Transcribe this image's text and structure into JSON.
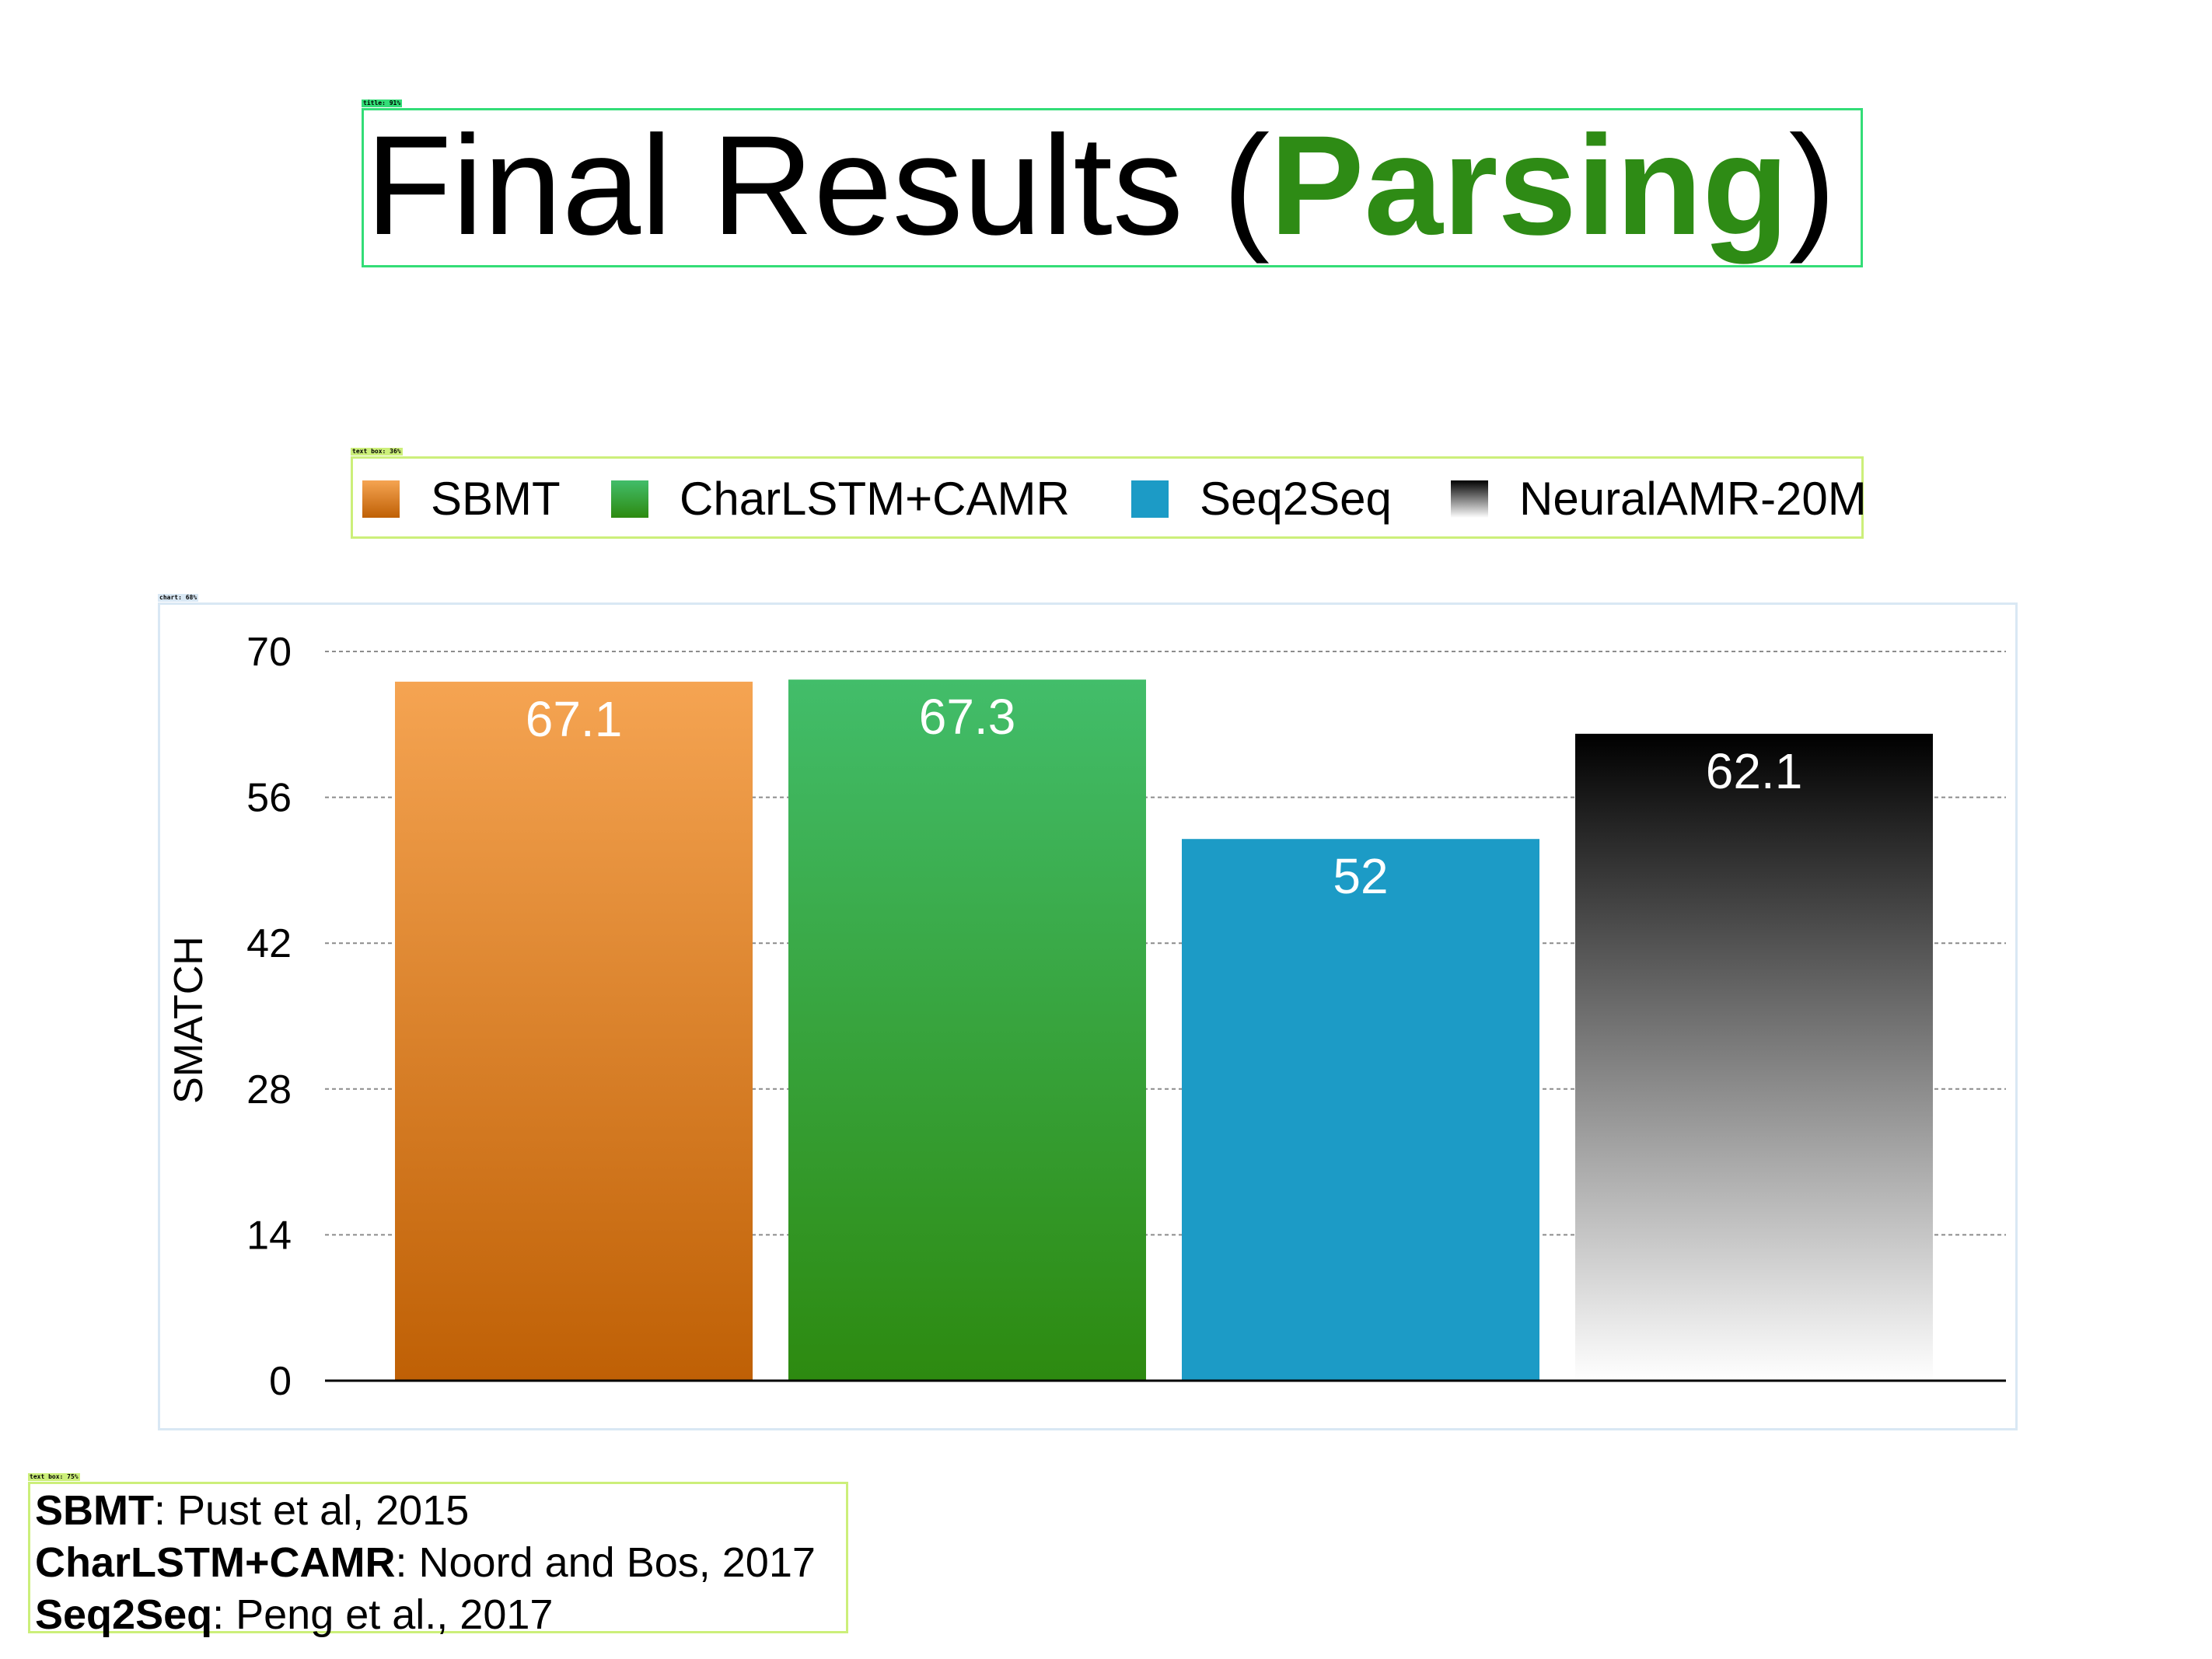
{
  "title": {
    "prefix": "Final Results (",
    "accent": "Parsing",
    "suffix": ")"
  },
  "detections": {
    "title_tag": "title: 91%",
    "legend_tag": "text box: 36%",
    "chart_tag": "chart: 68%",
    "refs_tag": "text box: 75%"
  },
  "colors": {
    "accent": "#2e8b15",
    "title_box": "#33dd77",
    "textbox_box": "#ccef7a",
    "chart_box": "#d9e8f4"
  },
  "chart_data": {
    "type": "bar",
    "title": "",
    "xlabel": "",
    "ylabel": "SMATCH",
    "ylim": [
      0,
      70
    ],
    "yticks": [
      0,
      14,
      28,
      42,
      56,
      70
    ],
    "grid": true,
    "legend_position": "top",
    "categories": [
      "SBMT",
      "CharLSTM+CAMR",
      "Seq2Seq",
      "NeuralAMR-20M"
    ],
    "values": [
      67.1,
      67.3,
      52,
      62.1
    ],
    "value_labels": [
      "67.1",
      "67.3",
      "52",
      "62.1"
    ],
    "series_colors": [
      {
        "top": "#f5a452",
        "bottom": "#bf6005"
      },
      {
        "top": "#42bd6a",
        "bottom": "#2d8a10"
      },
      {
        "top": "#1c9bc6",
        "bottom": "#1c9bc6"
      },
      {
        "top": "#000000",
        "bottom": "#ffffff"
      }
    ]
  },
  "references": [
    {
      "name": "SBMT",
      "citation": ": Pust et al, 2015"
    },
    {
      "name": "CharLSTM+CAMR",
      "citation": ": Noord and Bos, 2017"
    },
    {
      "name": "Seq2Seq",
      "citation": ": Peng et al., 2017"
    }
  ]
}
